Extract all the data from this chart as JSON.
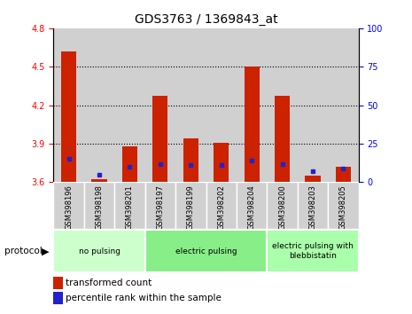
{
  "title": "GDS3763 / 1369843_at",
  "samples": [
    "GSM398196",
    "GSM398198",
    "GSM398201",
    "GSM398197",
    "GSM398199",
    "GSM398202",
    "GSM398204",
    "GSM398200",
    "GSM398203",
    "GSM398205"
  ],
  "red_values": [
    4.62,
    3.62,
    3.88,
    4.27,
    3.94,
    3.91,
    4.5,
    4.27,
    3.65,
    3.72
  ],
  "blue_values": [
    15,
    5,
    10,
    12,
    11,
    11,
    14,
    12,
    7,
    9
  ],
  "y_min": 3.6,
  "y_max": 4.8,
  "y_ticks_red": [
    3.6,
    3.9,
    4.2,
    4.5,
    4.8
  ],
  "y_ticks_blue": [
    0,
    25,
    50,
    75,
    100
  ],
  "groups": [
    {
      "label": "no pulsing",
      "start": 0,
      "end": 2,
      "color": "#ccffcc"
    },
    {
      "label": "electric pulsing",
      "start": 3,
      "end": 6,
      "color": "#88ee88"
    },
    {
      "label": "electric pulsing with\nblebbistatin",
      "start": 7,
      "end": 9,
      "color": "#aaffaa"
    }
  ],
  "bar_color": "#cc2200",
  "dot_color": "#2222cc",
  "bar_width": 0.5,
  "legend_red": "transformed count",
  "legend_blue": "percentile rank within the sample",
  "protocol_label": "protocol"
}
